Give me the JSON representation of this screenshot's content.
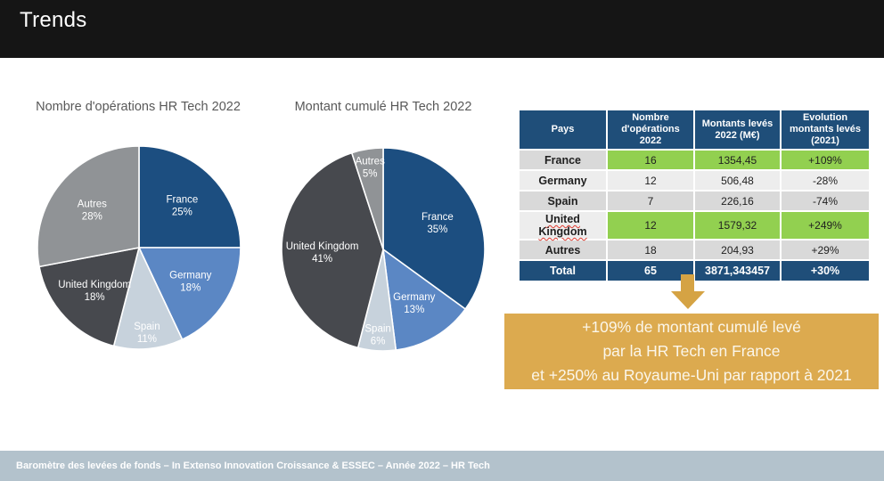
{
  "header": {
    "title": "Trends"
  },
  "colors": {
    "title_bar": "#151515",
    "navy": "#1F4E79",
    "green": "#92D050",
    "band_gray": "#D9D9D9",
    "band_light": "#EDEDED",
    "gold_arrow": "#D5A344",
    "gold_box": "#DCAA4F",
    "footer_bg": "#B3C2CC",
    "pie_title_gray": "#595959"
  },
  "chart_data": [
    {
      "type": "pie",
      "title": "Nombre d'opérations HR Tech 2022",
      "categories": [
        "France",
        "Germany",
        "Spain",
        "United Kingdom",
        "Autres"
      ],
      "values": [
        25,
        18,
        11,
        18,
        28
      ],
      "unit": "%",
      "colors": [
        "#1C4E80",
        "#5B87C4",
        "#C7D2DC",
        "#47494E",
        "#909396"
      ],
      "labels_inside": true,
      "start_angle_deg": 0,
      "direction": "clockwise"
    },
    {
      "type": "pie",
      "title": "Montant cumulé HR Tech 2022",
      "categories": [
        "France",
        "Germany",
        "Spain",
        "United Kingdom",
        "Autres"
      ],
      "values": [
        35,
        13,
        6,
        41,
        5
      ],
      "unit": "%",
      "colors": [
        "#1C4E80",
        "#5B87C4",
        "#C7D2DC",
        "#47494E",
        "#909396"
      ],
      "labels_inside": true,
      "start_angle_deg": 0,
      "direction": "clockwise"
    }
  ],
  "table": {
    "columns": [
      "Pays",
      "Nombre d'opérations 2022",
      "Montants levés 2022 (M€)",
      "Evolution montants levés (2021)"
    ],
    "rows": [
      {
        "pays": "France",
        "ops": "16",
        "montants": "1354,45",
        "evolution": "+109%",
        "highlight": true,
        "spell_underline": false
      },
      {
        "pays": "Germany",
        "ops": "12",
        "montants": "506,48",
        "evolution": "-28%",
        "highlight": false,
        "spell_underline": false
      },
      {
        "pays": "Spain",
        "ops": "7",
        "montants": "226,16",
        "evolution": "-74%",
        "highlight": false,
        "spell_underline": false
      },
      {
        "pays": "United Kingdom",
        "ops": "12",
        "montants": "1579,32",
        "evolution": "+249%",
        "highlight": true,
        "spell_underline": true
      },
      {
        "pays": "Autres",
        "ops": "18",
        "montants": "204,93",
        "evolution": "+29%",
        "highlight": false,
        "spell_underline": false
      }
    ],
    "total": {
      "pays": "Total",
      "ops": "65",
      "montants": "3871,343457",
      "evolution": "+30%"
    }
  },
  "callout": {
    "lines": [
      "+109% de montant cumulé levé",
      "par la HR Tech en France",
      "et +250% au Royaume-Uni par rapport à 2021"
    ]
  },
  "footer": {
    "text": "Baromètre des levées de fonds – In Extenso Innovation Croissance & ESSEC – Année 2022 – HR Tech"
  }
}
